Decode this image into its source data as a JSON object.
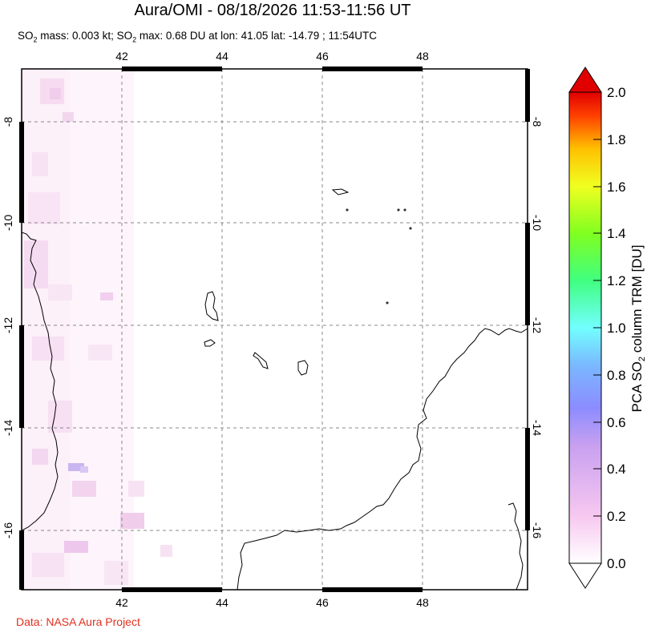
{
  "title": "Aura/OMI - 08/18/2026 11:53-11:56 UT",
  "subtitle": {
    "mass_prefix": "SO",
    "mass_sub": "2",
    "mass_text": " mass: 0.003 kt; SO",
    "max_sub": "2",
    "max_text": " max: 0.68 DU at lon: 41.05 lat: -14.79 ; 11:54UTC"
  },
  "credit": "Data: NASA Aura Project",
  "map": {
    "lon_ticks": [
      "42",
      "44",
      "46",
      "48"
    ],
    "lat_ticks": [
      "-8",
      "-10",
      "-12",
      "-14",
      "-16"
    ],
    "grid": true
  },
  "colorbar": {
    "label_prefix": "PCA SO",
    "label_sub": "2",
    "label_suffix": " column TRM [DU]",
    "ticks": [
      "0.0",
      "0.2",
      "0.4",
      "0.6",
      "0.8",
      "1.0",
      "1.2",
      "1.4",
      "1.6",
      "1.8",
      "2.0"
    ],
    "colors": [
      "#ffffff",
      "#f7c8f0",
      "#c8a0f0",
      "#8c8cff",
      "#7ab8ff",
      "#72ffff",
      "#40ff80",
      "#80ff20",
      "#f0ff20",
      "#ffc000",
      "#ff4000",
      "#e00000"
    ]
  }
}
